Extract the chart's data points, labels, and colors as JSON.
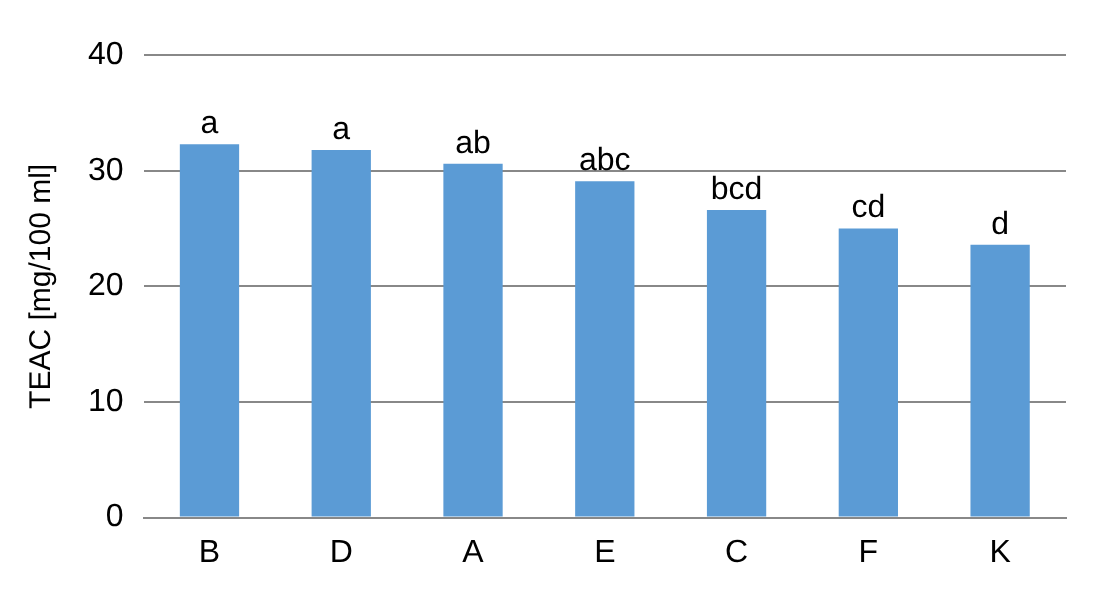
{
  "chart_data": {
    "type": "bar",
    "ylabel": "TEAC [mg/100 ml]",
    "categories": [
      "B",
      "D",
      "A",
      "E",
      "C",
      "F",
      "K"
    ],
    "values": [
      32.3,
      31.8,
      30.6,
      29.1,
      26.6,
      25.0,
      23.6
    ],
    "color": "#5b9bd5",
    "ylim": [
      0,
      40
    ],
    "yticks": [
      0,
      10,
      20,
      30,
      40
    ],
    "grid": "y",
    "annotations": [
      {
        "text": "a",
        "x": "B",
        "y": 32.3
      },
      {
        "text": "a",
        "x": "D",
        "y": 31.8
      },
      {
        "text": "ab",
        "x": "A",
        "y": 30.6
      },
      {
        "text": "abc",
        "x": "E",
        "y": 29.1
      },
      {
        "text": "bcd",
        "x": "C",
        "y": 26.6
      },
      {
        "text": "cd",
        "x": "F",
        "y": 25.0
      },
      {
        "text": "d",
        "x": "K",
        "y": 23.6
      }
    ]
  }
}
